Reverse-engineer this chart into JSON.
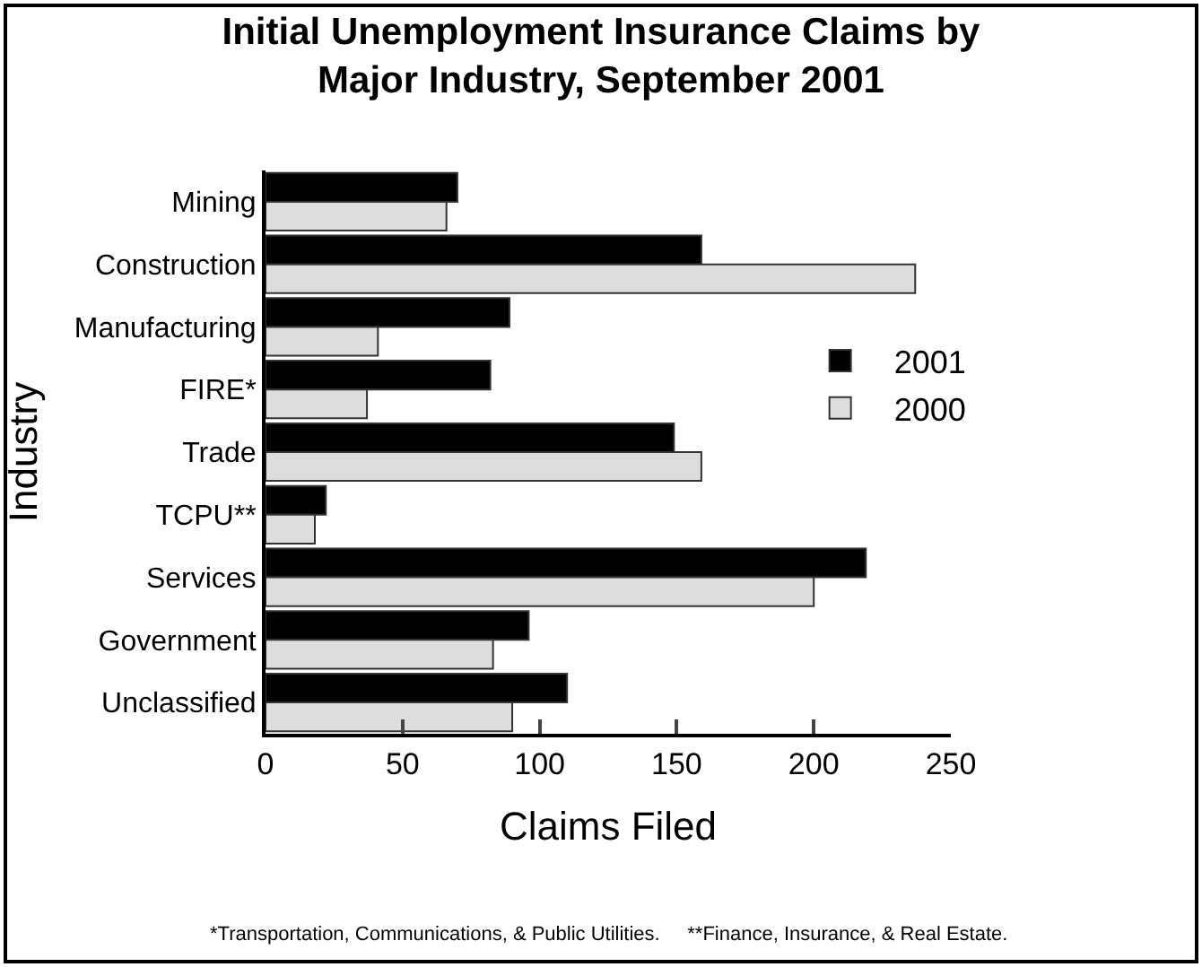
{
  "chart_data": {
    "type": "bar",
    "orientation": "horizontal",
    "title": "Initial Unemployment Insurance Claims by Major Industry, September 2001",
    "xlabel": "Claims Filed",
    "ylabel": "Industry",
    "categories": [
      "Mining",
      "Construction",
      "Manufacturing",
      "FIRE*",
      "Trade",
      "TCPU**",
      "Services",
      "Government",
      "Unclassified"
    ],
    "series": [
      {
        "name": "2001",
        "color": "#000000",
        "values": [
          70,
          159,
          89,
          82,
          149,
          22,
          219,
          96,
          110
        ]
      },
      {
        "name": "2000",
        "color": "#dddddd",
        "values": [
          66,
          237,
          41,
          37,
          159,
          18,
          200,
          83,
          90
        ]
      }
    ],
    "xlim": [
      0,
      250
    ],
    "xticks": [
      0,
      50,
      100,
      150,
      200,
      250
    ],
    "grid": false,
    "legend": "right",
    "annotations": [
      "*Transportation, Communications, & Public Utilities.     **Finance, Insurance, & Real Estate."
    ]
  }
}
